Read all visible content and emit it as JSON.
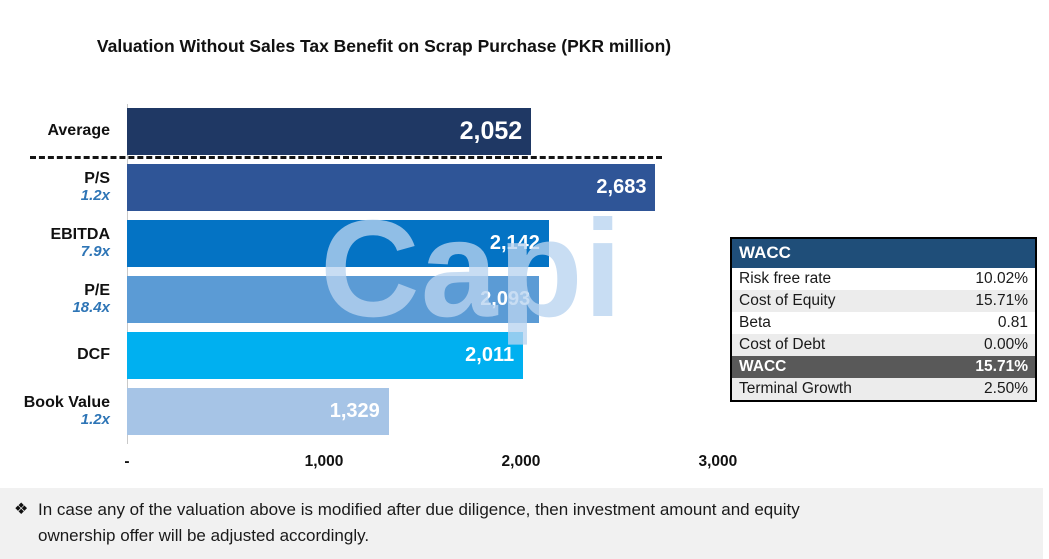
{
  "chart_data": {
    "type": "bar",
    "orientation": "horizontal",
    "title": "Valuation Without Sales Tax Benefit on Scrap Purchase (PKR million)",
    "categories": [
      "Average",
      "P/S",
      "EBITDA",
      "P/E",
      "DCF",
      "Book Value"
    ],
    "category_multiples": [
      "",
      "1.2x",
      "7.9x",
      "18.4x",
      "",
      "1.2x"
    ],
    "values": [
      2052,
      2683,
      2142,
      2093,
      2011,
      1329
    ],
    "value_labels": [
      "2,052",
      "2,683",
      "2,142",
      "2,093",
      "2,011",
      "1,329"
    ],
    "bar_colors": [
      "#1F3864",
      "#2F5597",
      "#0473C4",
      "#5B9BD5",
      "#00B0F0",
      "#A6C4E6"
    ],
    "x_ticks": [
      {
        "label": "-",
        "value": 0
      },
      {
        "label": "1,000",
        "value": 1000
      },
      {
        "label": "2,000",
        "value": 2000
      },
      {
        "label": "3,000",
        "value": 3000
      }
    ],
    "xlim": [
      0,
      3300
    ],
    "grid": false,
    "legend": false,
    "separator_after_first_bar": true,
    "watermark": "Capi"
  },
  "wacc_table": {
    "header": "WACC",
    "rows": [
      {
        "label": "Risk free rate",
        "value": "10.02%"
      },
      {
        "label": "Cost of Equity",
        "value": "15.71%"
      },
      {
        "label": "Beta",
        "value": "0.81"
      },
      {
        "label": "Cost of Debt",
        "value": "0.00%"
      },
      {
        "label": "WACC",
        "value": "15.71%",
        "highlight": true
      },
      {
        "label": "Terminal Growth",
        "value": "2.50%"
      }
    ]
  },
  "footnote": {
    "bullet": "❖",
    "text": "In case any of the valuation above is modified after due diligence, then investment amount and equity ownership offer will be adjusted accordingly."
  }
}
